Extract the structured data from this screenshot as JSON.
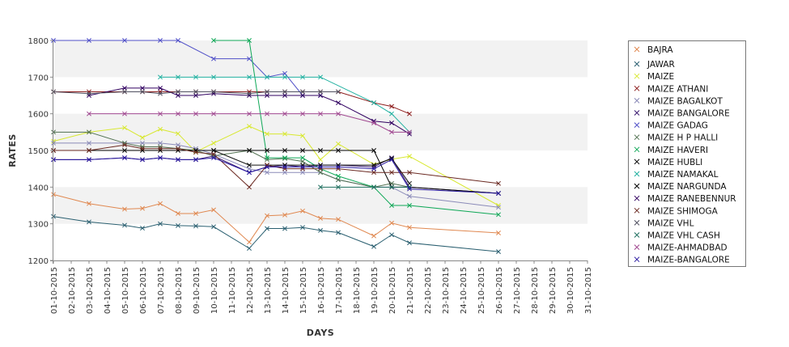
{
  "chart_data": {
    "type": "line",
    "xlabel": "DAYS",
    "ylabel": "RATES",
    "ylim": [
      1200,
      1800
    ],
    "yticks": [
      1200,
      1300,
      1400,
      1500,
      1600,
      1700,
      1800
    ],
    "grid": "alternating horizontal bands",
    "legend_position": "right",
    "categories": [
      "01-10-2015",
      "02-10-2015",
      "03-10-2015",
      "04-10-2015",
      "05-10-2015",
      "06-10-2015",
      "07-10-2015",
      "08-10-2015",
      "09-10-2015",
      "10-10-2015",
      "11-10-2015",
      "12-10-2015",
      "13-10-2015",
      "14-10-2015",
      "15-10-2015",
      "16-10-2015",
      "17-10-2015",
      "18-10-2015",
      "19-10-2015",
      "20-10-2015",
      "21-10-2015",
      "22-10-2015",
      "23-10-2015",
      "24-10-2015",
      "25-10-2015",
      "26-10-2015",
      "27-10-2015",
      "28-10-2015",
      "29-10-2015",
      "30-10-2015",
      "31-10-2015"
    ],
    "series": [
      {
        "name": "BAJRA",
        "color": "#e08850",
        "points": [
          [
            0,
            1380
          ],
          [
            2,
            1355
          ],
          [
            4,
            1340
          ],
          [
            5,
            1342
          ],
          [
            6,
            1355
          ],
          [
            7,
            1328
          ],
          [
            8,
            1328
          ],
          [
            9,
            1338
          ],
          [
            11,
            1250
          ],
          [
            12,
            1322
          ],
          [
            13,
            1324
          ],
          [
            14,
            1335
          ],
          [
            15,
            1315
          ],
          [
            16,
            1312
          ],
          [
            18,
            1267
          ],
          [
            19,
            1302
          ],
          [
            20,
            1290
          ],
          [
            25,
            1275
          ]
        ]
      },
      {
        "name": "JAWAR",
        "color": "#2a5f70",
        "points": [
          [
            0,
            1320
          ],
          [
            2,
            1305
          ],
          [
            4,
            1296
          ],
          [
            5,
            1288
          ],
          [
            6,
            1300
          ],
          [
            7,
            1295
          ],
          [
            8,
            1294
          ],
          [
            9,
            1292
          ],
          [
            11,
            1233
          ],
          [
            12,
            1287
          ],
          [
            13,
            1287
          ],
          [
            14,
            1290
          ],
          [
            15,
            1282
          ],
          [
            16,
            1276
          ],
          [
            18,
            1238
          ],
          [
            19,
            1270
          ],
          [
            20,
            1248
          ],
          [
            25,
            1224
          ]
        ]
      },
      {
        "name": "MAIZE",
        "color": "#d8e830",
        "points": [
          [
            0,
            1525
          ],
          [
            2,
            1550
          ],
          [
            4,
            1562
          ],
          [
            5,
            1535
          ],
          [
            6,
            1558
          ],
          [
            7,
            1546
          ],
          [
            8,
            1496
          ],
          [
            9,
            1520
          ],
          [
            11,
            1566
          ],
          [
            12,
            1545
          ],
          [
            13,
            1545
          ],
          [
            14,
            1540
          ],
          [
            15,
            1475
          ],
          [
            16,
            1518
          ],
          [
            18,
            1462
          ],
          [
            19,
            1476
          ],
          [
            20,
            1484
          ],
          [
            25,
            1350
          ]
        ]
      },
      {
        "name": "MAIZE ATHANI",
        "color": "#8b1a1a",
        "points": [
          [
            0,
            1660
          ],
          [
            2,
            1660
          ],
          [
            4,
            1660
          ],
          [
            5,
            1660
          ],
          [
            6,
            1660
          ],
          [
            7,
            1660
          ],
          [
            8,
            1660
          ],
          [
            9,
            1660
          ],
          [
            11,
            1660
          ],
          [
            12,
            1660
          ],
          [
            13,
            1660
          ],
          [
            14,
            1660
          ],
          [
            15,
            1660
          ],
          [
            16,
            1660
          ],
          [
            18,
            1630
          ],
          [
            19,
            1620
          ],
          [
            20,
            1600
          ]
        ]
      },
      {
        "name": "MAIZE BAGALKOT",
        "color": "#8a8ab8",
        "points": [
          [
            0,
            1520
          ],
          [
            2,
            1520
          ],
          [
            4,
            1520
          ],
          [
            5,
            1520
          ],
          [
            6,
            1520
          ],
          [
            7,
            1515
          ],
          [
            8,
            1505
          ],
          [
            9,
            1490
          ],
          [
            11,
            1450
          ],
          [
            12,
            1440
          ],
          [
            13,
            1440
          ],
          [
            14,
            1440
          ],
          [
            15,
            1440
          ],
          [
            16,
            1420
          ],
          [
            18,
            1400
          ],
          [
            19,
            1400
          ],
          [
            20,
            1375
          ],
          [
            25,
            1345
          ]
        ]
      },
      {
        "name": "MAIZE BANGALORE",
        "color": "#3a1a70",
        "points": [
          [
            0,
            1475
          ],
          [
            2,
            1475
          ],
          [
            4,
            1480
          ],
          [
            5,
            1475
          ],
          [
            6,
            1480
          ],
          [
            7,
            1475
          ],
          [
            8,
            1475
          ],
          [
            9,
            1485
          ],
          [
            11,
            1440
          ],
          [
            12,
            1455
          ],
          [
            13,
            1460
          ],
          [
            14,
            1455
          ],
          [
            15,
            1460
          ],
          [
            16,
            1460
          ],
          [
            18,
            1455
          ],
          [
            19,
            1480
          ],
          [
            20,
            1400
          ],
          [
            25,
            1383
          ]
        ]
      },
      {
        "name": "MAIZE GADAG",
        "color": "#5050c8",
        "points": [
          [
            0,
            1800
          ],
          [
            2,
            1800
          ],
          [
            4,
            1800
          ],
          [
            6,
            1800
          ],
          [
            7,
            1800
          ],
          [
            9,
            1750
          ],
          [
            11,
            1750
          ],
          [
            12,
            1700
          ],
          [
            13,
            1710
          ],
          [
            14,
            1650
          ],
          [
            15,
            1650
          ]
        ]
      },
      {
        "name": "MAIZE H P HALLI",
        "color": "#507050",
        "points": [
          [
            0,
            1550
          ],
          [
            2,
            1550
          ],
          [
            4,
            1520
          ],
          [
            5,
            1510
          ],
          [
            6,
            1510
          ],
          [
            7,
            1505
          ],
          [
            8,
            1500
          ],
          [
            9,
            1485
          ],
          [
            11,
            1500
          ],
          [
            12,
            1475
          ],
          [
            13,
            1478
          ],
          [
            14,
            1470
          ],
          [
            15,
            1440
          ],
          [
            16,
            1420
          ],
          [
            18,
            1400
          ],
          [
            19,
            1410
          ],
          [
            20,
            1400
          ]
        ]
      },
      {
        "name": "MAIZE HAVERI",
        "color": "#10a858",
        "points": [
          [
            9,
            1800
          ],
          [
            11,
            1800
          ],
          [
            12,
            1480
          ],
          [
            13,
            1480
          ],
          [
            14,
            1480
          ],
          [
            15,
            1450
          ],
          [
            16,
            1430
          ],
          [
            18,
            1400
          ],
          [
            19,
            1350
          ],
          [
            20,
            1350
          ],
          [
            25,
            1325
          ]
        ]
      },
      {
        "name": "MAIZE HUBLI",
        "color": "#101010",
        "points": [
          [
            9,
            1500
          ],
          [
            11,
            1460
          ],
          [
            12,
            1460
          ],
          [
            13,
            1460
          ],
          [
            14,
            1460
          ],
          [
            15,
            1460
          ],
          [
            16,
            1460
          ],
          [
            18,
            1460
          ],
          [
            19,
            1478
          ],
          [
            20,
            1410
          ]
        ]
      },
      {
        "name": "MAIZE NAMAKAL",
        "color": "#20b0a0",
        "points": [
          [
            6,
            1700
          ],
          [
            7,
            1700
          ],
          [
            8,
            1700
          ],
          [
            9,
            1700
          ],
          [
            11,
            1700
          ],
          [
            12,
            1700
          ],
          [
            13,
            1700
          ],
          [
            14,
            1700
          ],
          [
            15,
            1700
          ],
          [
            18,
            1630
          ],
          [
            19,
            1600
          ],
          [
            20,
            1550
          ]
        ]
      },
      {
        "name": "MAIZE NARGUNDA",
        "color": "#000000",
        "points": [
          [
            0,
            1500
          ],
          [
            2,
            1500
          ],
          [
            4,
            1500
          ],
          [
            5,
            1500
          ],
          [
            6,
            1500
          ],
          [
            7,
            1500
          ],
          [
            8,
            1500
          ],
          [
            9,
            1500
          ],
          [
            11,
            1500
          ],
          [
            12,
            1500
          ],
          [
            13,
            1500
          ],
          [
            14,
            1500
          ],
          [
            15,
            1500
          ],
          [
            16,
            1500
          ],
          [
            18,
            1500
          ],
          [
            19,
            1400
          ],
          [
            20,
            1400
          ],
          [
            25,
            1383
          ]
        ]
      },
      {
        "name": "MAIZE RANEBENNUR",
        "color": "#300060",
        "points": [
          [
            2,
            1650
          ],
          [
            4,
            1670
          ],
          [
            5,
            1670
          ],
          [
            6,
            1670
          ],
          [
            7,
            1650
          ],
          [
            8,
            1650
          ],
          [
            9,
            1655
          ],
          [
            11,
            1650
          ],
          [
            12,
            1650
          ],
          [
            13,
            1650
          ],
          [
            14,
            1650
          ],
          [
            15,
            1650
          ],
          [
            16,
            1630
          ],
          [
            18,
            1580
          ],
          [
            19,
            1575
          ],
          [
            20,
            1545
          ]
        ]
      },
      {
        "name": "MAIZE SHIMOGA",
        "color": "#6a2820",
        "points": [
          [
            0,
            1500
          ],
          [
            2,
            1500
          ],
          [
            4,
            1515
          ],
          [
            5,
            1505
          ],
          [
            6,
            1505
          ],
          [
            7,
            1505
          ],
          [
            8,
            1495
          ],
          [
            9,
            1490
          ],
          [
            11,
            1400
          ],
          [
            12,
            1460
          ],
          [
            13,
            1450
          ],
          [
            14,
            1450
          ],
          [
            15,
            1450
          ],
          [
            16,
            1450
          ],
          [
            18,
            1440
          ],
          [
            19,
            1440
          ],
          [
            20,
            1440
          ],
          [
            25,
            1410
          ]
        ]
      },
      {
        "name": "MAIZE VHL",
        "color": "#505060",
        "points": [
          [
            0,
            1660
          ],
          [
            2,
            1655
          ],
          [
            4,
            1660
          ],
          [
            5,
            1660
          ],
          [
            6,
            1655
          ],
          [
            7,
            1660
          ],
          [
            8,
            1660
          ],
          [
            9,
            1660
          ],
          [
            11,
            1655
          ],
          [
            12,
            1660
          ],
          [
            13,
            1660
          ],
          [
            14,
            1660
          ],
          [
            15,
            1660
          ],
          [
            16,
            1660
          ]
        ]
      },
      {
        "name": "MAIZE VHL CASH",
        "color": "#207060",
        "points": [
          [
            15,
            1400
          ],
          [
            16,
            1400
          ],
          [
            18,
            1400
          ],
          [
            19,
            1400
          ],
          [
            20,
            1400
          ]
        ]
      },
      {
        "name": "MAIZE-AHMADBAD",
        "color": "#a04890",
        "points": [
          [
            2,
            1600
          ],
          [
            4,
            1600
          ],
          [
            6,
            1600
          ],
          [
            7,
            1600
          ],
          [
            8,
            1600
          ],
          [
            9,
            1600
          ],
          [
            11,
            1600
          ],
          [
            12,
            1600
          ],
          [
            13,
            1600
          ],
          [
            14,
            1600
          ],
          [
            15,
            1600
          ],
          [
            16,
            1600
          ],
          [
            18,
            1575
          ],
          [
            19,
            1550
          ],
          [
            20,
            1550
          ]
        ]
      },
      {
        "name": "MAIZE-BANGALORE",
        "color": "#2818a0",
        "points": [
          [
            0,
            1475
          ],
          [
            2,
            1475
          ],
          [
            4,
            1480
          ],
          [
            5,
            1475
          ],
          [
            6,
            1480
          ],
          [
            7,
            1475
          ],
          [
            8,
            1475
          ],
          [
            9,
            1480
          ],
          [
            11,
            1440
          ],
          [
            12,
            1455
          ],
          [
            13,
            1455
          ],
          [
            14,
            1455
          ],
          [
            15,
            1455
          ],
          [
            16,
            1455
          ],
          [
            18,
            1450
          ],
          [
            19,
            1475
          ],
          [
            20,
            1395
          ],
          [
            25,
            1383
          ]
        ]
      }
    ]
  }
}
